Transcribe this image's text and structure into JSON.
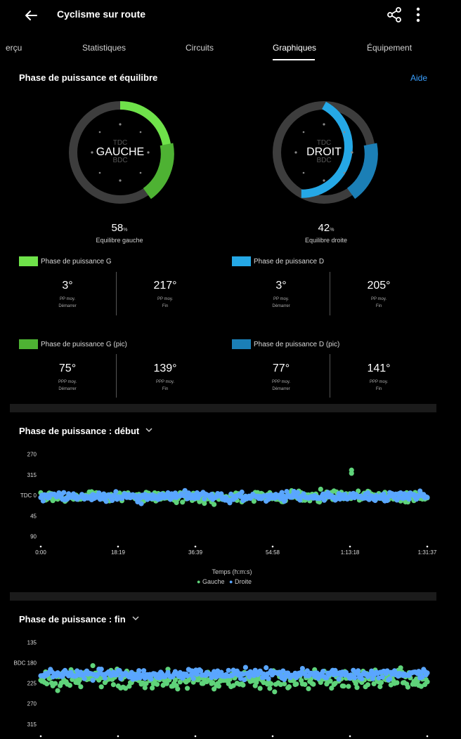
{
  "header": {
    "title": "Cyclisme sur route",
    "back_icon": "arrow-left-icon",
    "share_icon": "share-icon",
    "more_icon": "more-vert-icon"
  },
  "tabs": [
    {
      "label": "erçu"
    },
    {
      "label": "Statistiques"
    },
    {
      "label": "Circuits"
    },
    {
      "label": "Graphiques",
      "active": true
    },
    {
      "label": "Équipement"
    }
  ],
  "power_phase": {
    "title": "Phase de puissance et équilibre",
    "help": "Aide",
    "left": {
      "label": "GAUCHE",
      "tdc": "TDC",
      "bdc": "BDC",
      "balance_value": "58",
      "balance_unit": "%",
      "balance_label": "Equilibre gauche",
      "phase_legend": "Phase de puissance G",
      "phase_color": "#6fe24a",
      "phase_start": "3°",
      "phase_start_label1": "PP moy.",
      "phase_start_label2": "Démarrer",
      "phase_end": "217°",
      "phase_end_label1": "PP moy.",
      "phase_end_label2": "Fin",
      "peak_legend": "Phase de puissance G (pic)",
      "peak_color": "#4eb233",
      "peak_start": "75°",
      "peak_start_label1": "PPP moy.",
      "peak_start_label2": "Démarrer",
      "peak_end": "139°",
      "peak_end_label1": "PPP moy.",
      "peak_end_label2": "Fin"
    },
    "right": {
      "label": "DROIT",
      "tdc": "TDC",
      "bdc": "BDC",
      "balance_value": "42",
      "balance_unit": "%",
      "balance_label": "Equilibre droite",
      "phase_legend": "Phase de puissance D",
      "phase_color": "#25a8e6",
      "phase_start": "3°",
      "phase_start_label1": "PP moy.",
      "phase_start_label2": "Démarrer",
      "phase_end": "205°",
      "phase_end_label1": "PP moy.",
      "phase_end_label2": "Fin",
      "peak_legend": "Phase de puissance D (pic)",
      "peak_color": "#1b7fb6",
      "peak_start": "77°",
      "peak_start_label1": "PPP moy.",
      "peak_start_label2": "Démarrer",
      "peak_end": "141°",
      "peak_end_label1": "PPP moy.",
      "peak_end_label2": "Fin"
    }
  },
  "chart_start": {
    "title": "Phase de puissance : début",
    "xlabel": "Temps (h:m:s)",
    "legend": [
      "Gauche",
      "Droite"
    ]
  },
  "chart_end": {
    "title": "Phase de puissance : fin"
  },
  "chart_data": [
    {
      "type": "scatter",
      "title": "Phase de puissance : début",
      "xlabel": "Temps (h:m:s)",
      "ylabel": "",
      "y_ticks": [
        "270",
        "315",
        "TDC 0",
        "45",
        "90"
      ],
      "y_tick_values": [
        -90,
        -45,
        0,
        45,
        90
      ],
      "x_ticks": [
        "0:00",
        "18:19",
        "36:39",
        "54:58",
        "1:13:18",
        "1:31:37"
      ],
      "x_tick_values": [
        0,
        1099,
        2199,
        3298,
        4398,
        5497
      ],
      "ylim": [
        -100,
        100
      ],
      "y_inverted": true,
      "legend_position": "bottom",
      "series": [
        {
          "name": "Gauche",
          "color": "#5fd37a",
          "mean": 3,
          "spread": 15,
          "outliers": [
            [
              4420,
              -55
            ],
            [
              4420,
              -48
            ]
          ]
        },
        {
          "name": "Droite",
          "color": "#5aa6ff",
          "mean": 3,
          "spread": 12,
          "outliers": []
        }
      ]
    },
    {
      "type": "scatter",
      "title": "Phase de puissance : fin",
      "y_ticks": [
        "135",
        "BDC 180",
        "225",
        "270",
        "315"
      ],
      "y_tick_values": [
        135,
        180,
        225,
        270,
        315
      ],
      "x_ticks": [
        "0:00",
        "18:19",
        "36:39",
        "54:58",
        "1:13:18",
        "1:31:37"
      ],
      "x_tick_values": [
        0,
        1099,
        2199,
        3298,
        4398,
        5497
      ],
      "ylim": [
        125,
        320
      ],
      "series": [
        {
          "name": "Gauche",
          "color": "#5fd37a",
          "mean": 217,
          "spread": 25,
          "outliers": []
        },
        {
          "name": "Droite",
          "color": "#5aa6ff",
          "mean": 205,
          "spread": 14,
          "outliers": []
        }
      ]
    }
  ]
}
